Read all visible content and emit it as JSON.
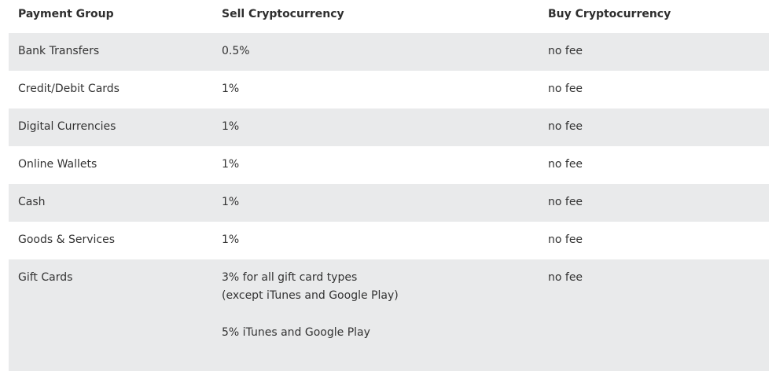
{
  "headers": {
    "payment_group": "Payment Group",
    "sell": "Sell Cryptocurrency",
    "buy": "Buy Cryptocurrency"
  },
  "rows": [
    {
      "group": "Bank Transfers",
      "sell": "0.5%",
      "buy": "no fee"
    },
    {
      "group": "Credit/Debit Cards",
      "sell": "1%",
      "buy": "no fee"
    },
    {
      "group": "Digital Currencies",
      "sell": "1%",
      "buy": "no fee"
    },
    {
      "group": "Online Wallets",
      "sell": "1%",
      "buy": "no fee"
    },
    {
      "group": "Cash",
      "sell": "1%",
      "buy": "no fee"
    },
    {
      "group": "Goods & Services",
      "sell": "1%",
      "buy": "no fee"
    },
    {
      "group": "Gift Cards",
      "sell_line1": "3% for all gift card types",
      "sell_line2": "(except iTunes and Google Play)",
      "sell_line3": "5% iTunes and Google Play",
      "buy": "no fee"
    }
  ],
  "colors": {
    "shaded_row": "#e9eaeb",
    "text": "#333333"
  }
}
